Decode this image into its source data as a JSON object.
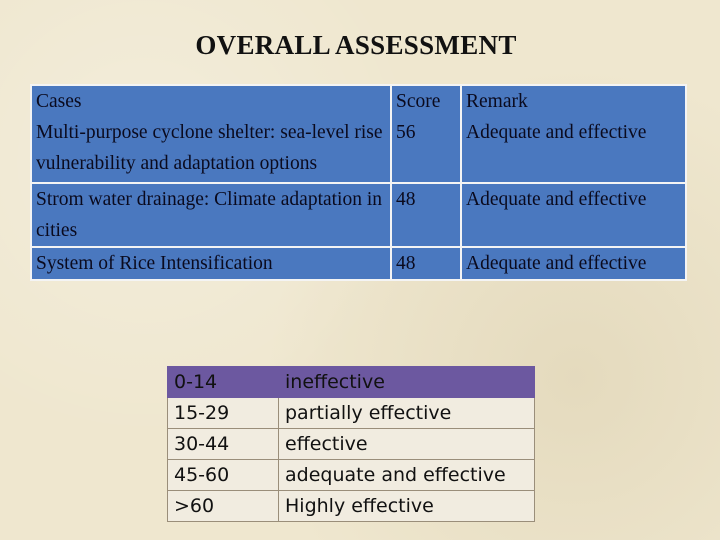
{
  "title": "OVERALL ASSESSMENT",
  "main_table": {
    "headers": {
      "cases": "Cases",
      "score": "Score",
      "remark": "Remark"
    },
    "rows": [
      {
        "case": "Multi-purpose cyclone shelter: sea-level rise vulnerability and adaptation options",
        "score": "56",
        "remark": "Adequate and effective"
      },
      {
        "case": "Strom water drainage: Climate adaptation in cities",
        "score": "48",
        "remark": "Adequate and effective"
      },
      {
        "case": "System of Rice Intensification",
        "score": "48",
        "remark": "Adequate and effective"
      }
    ]
  },
  "legend": [
    {
      "range": "0-14",
      "label": "ineffective"
    },
    {
      "range": "15-29",
      "label": "partially effective"
    },
    {
      "range": "30-44",
      "label": "effective"
    },
    {
      "range": "45-60",
      "label": "adequate and effective"
    },
    {
      "range": ">60",
      "label": "Highly effective"
    }
  ],
  "colors": {
    "background": "#efe7cf",
    "main_table_fill": "#4a78bf",
    "legend_header_fill": "#6c58a0",
    "legend_row_fill": "#f1ece0"
  }
}
